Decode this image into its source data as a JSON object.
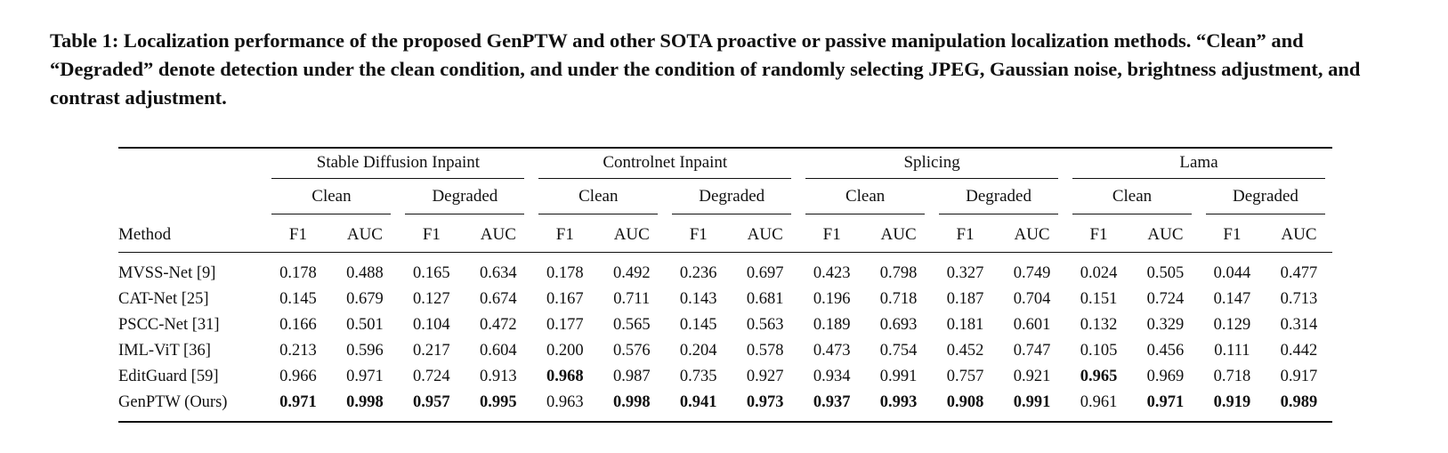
{
  "caption": "Table 1: Localization performance of the proposed GenPTW and other SOTA proactive or passive manipulation localization methods. “Clean” and “Degraded” denote detection under the clean condition, and under the condition of randomly selecting JPEG, Gaussian noise, brightness adjustment, and contrast adjustment.",
  "header": {
    "method_label": "Method",
    "groups": [
      "Stable Diffusion Inpaint",
      "Controlnet Inpaint",
      "Splicing",
      "Lama"
    ],
    "conditions": [
      "Clean",
      "Degraded"
    ],
    "metrics": [
      "F1",
      "AUC"
    ]
  },
  "rows": [
    {
      "method": "MVSS-Net [9]",
      "values": [
        "0.178",
        "0.488",
        "0.165",
        "0.634",
        "0.178",
        "0.492",
        "0.236",
        "0.697",
        "0.423",
        "0.798",
        "0.327",
        "0.749",
        "0.024",
        "0.505",
        "0.044",
        "0.477"
      ],
      "bold": []
    },
    {
      "method": "CAT-Net [25]",
      "values": [
        "0.145",
        "0.679",
        "0.127",
        "0.674",
        "0.167",
        "0.711",
        "0.143",
        "0.681",
        "0.196",
        "0.718",
        "0.187",
        "0.704",
        "0.151",
        "0.724",
        "0.147",
        "0.713"
      ],
      "bold": []
    },
    {
      "method": "PSCC-Net [31]",
      "values": [
        "0.166",
        "0.501",
        "0.104",
        "0.472",
        "0.177",
        "0.565",
        "0.145",
        "0.563",
        "0.189",
        "0.693",
        "0.181",
        "0.601",
        "0.132",
        "0.329",
        "0.129",
        "0.314"
      ],
      "bold": []
    },
    {
      "method": "IML-ViT [36]",
      "values": [
        "0.213",
        "0.596",
        "0.217",
        "0.604",
        "0.200",
        "0.576",
        "0.204",
        "0.578",
        "0.473",
        "0.754",
        "0.452",
        "0.747",
        "0.105",
        "0.456",
        "0.111",
        "0.442"
      ],
      "bold": []
    },
    {
      "method": "EditGuard [59]",
      "values": [
        "0.966",
        "0.971",
        "0.724",
        "0.913",
        "0.968",
        "0.987",
        "0.735",
        "0.927",
        "0.934",
        "0.991",
        "0.757",
        "0.921",
        "0.965",
        "0.969",
        "0.718",
        "0.917"
      ],
      "bold": [
        4,
        12
      ]
    },
    {
      "method": "GenPTW (Ours)",
      "values": [
        "0.971",
        "0.998",
        "0.957",
        "0.995",
        "0.963",
        "0.998",
        "0.941",
        "0.973",
        "0.937",
        "0.993",
        "0.908",
        "0.991",
        "0.961",
        "0.971",
        "0.919",
        "0.989"
      ],
      "bold": [
        0,
        1,
        2,
        3,
        5,
        6,
        7,
        8,
        9,
        10,
        11,
        13,
        14,
        15
      ]
    }
  ]
}
